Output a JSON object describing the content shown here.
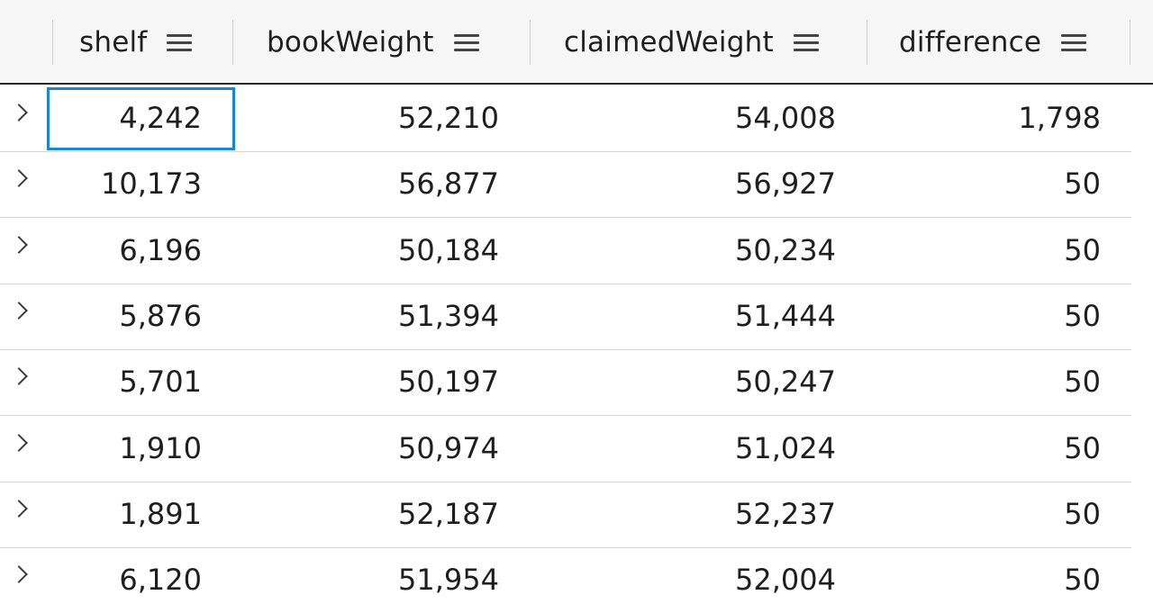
{
  "columns": [
    {
      "key": "shelf",
      "label": "shelf"
    },
    {
      "key": "bookWeight",
      "label": "bookWeight"
    },
    {
      "key": "claimedWeight",
      "label": "claimedWeight"
    },
    {
      "key": "difference",
      "label": "difference"
    }
  ],
  "rows": [
    {
      "shelf": "4,242",
      "bookWeight": "52,210",
      "claimedWeight": "54,008",
      "difference": "1,798"
    },
    {
      "shelf": "10,173",
      "bookWeight": "56,877",
      "claimedWeight": "56,927",
      "difference": "50"
    },
    {
      "shelf": "6,196",
      "bookWeight": "50,184",
      "claimedWeight": "50,234",
      "difference": "50"
    },
    {
      "shelf": "5,876",
      "bookWeight": "51,394",
      "claimedWeight": "51,444",
      "difference": "50"
    },
    {
      "shelf": "5,701",
      "bookWeight": "50,197",
      "claimedWeight": "50,247",
      "difference": "50"
    },
    {
      "shelf": "1,910",
      "bookWeight": "50,974",
      "claimedWeight": "51,024",
      "difference": "50"
    },
    {
      "shelf": "1,891",
      "bookWeight": "52,187",
      "claimedWeight": "52,237",
      "difference": "50"
    },
    {
      "shelf": "6,120",
      "bookWeight": "51,954",
      "claimedWeight": "52,004",
      "difference": "50"
    }
  ],
  "icons": {
    "column_menu": "hamburger-menu-icon",
    "row_expand": "chevron-right-icon"
  },
  "colors": {
    "focus_border": "#1a86d0",
    "header_background": "#f6f6f6"
  }
}
